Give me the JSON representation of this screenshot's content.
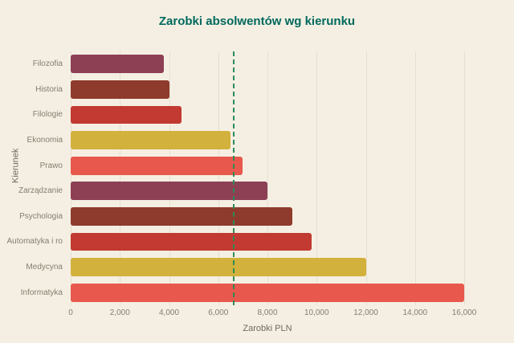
{
  "chart_data": {
    "type": "bar",
    "orientation": "horizontal",
    "title": "Zarobki absolwentów wg kierunku",
    "xlabel": "Zarobki PLN",
    "ylabel": "Kierunek",
    "categories": [
      "Filozofia",
      "Historia",
      "Filologie",
      "Ekonomia",
      "Prawo",
      "Zarządzanie",
      "Psychologia",
      "Automatyka i ro",
      "Medycyna",
      "Informatyka"
    ],
    "values": [
      3800,
      4000,
      4500,
      6500,
      7000,
      8000,
      9000,
      9800,
      12000,
      16000
    ],
    "bar_colors": [
      "#8d3f54",
      "#8e3a2c",
      "#c23a31",
      "#d2b13c",
      "#e8584c",
      "#8d3f54",
      "#8e3a2c",
      "#c23a31",
      "#d2b13c",
      "#e8584c"
    ],
    "xlim": [
      0,
      16000
    ],
    "xticks": [
      0,
      2000,
      4000,
      6000,
      8000,
      10000,
      12000,
      14000,
      16000
    ],
    "xtick_labels": [
      "0",
      "2,000",
      "4,000",
      "6,000",
      "8,000",
      "10,000",
      "12,000",
      "14,000",
      "16,000"
    ],
    "reference_line": {
      "value": 6600,
      "color": "#2e8b57",
      "style": "dashed"
    },
    "grid": true,
    "legend": "none",
    "colors": {
      "background": "#f5efe3",
      "title": "#00695c",
      "labels": "#847d6e",
      "gridline": "#e6dfcf"
    }
  }
}
